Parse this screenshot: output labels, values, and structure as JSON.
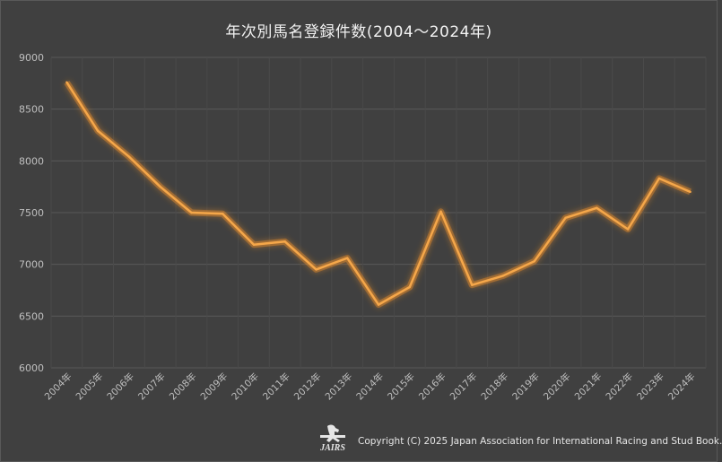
{
  "chart_data": {
    "type": "line",
    "title": "年次別馬名登録件数(2004～2024年)",
    "categories": [
      "2004年",
      "2005年",
      "2006年",
      "2007年",
      "2008年",
      "2009年",
      "2010年",
      "2011年",
      "2012年",
      "2013年",
      "2014年",
      "2015年",
      "2016年",
      "2017年",
      "2018年",
      "2019年",
      "2020年",
      "2021年",
      "2022年",
      "2023年",
      "2024年"
    ],
    "values": [
      8760,
      8290,
      8040,
      7750,
      7500,
      7490,
      7190,
      7220,
      6950,
      7060,
      6610,
      6780,
      7510,
      6800,
      6890,
      7030,
      7450,
      7545,
      7340,
      7830,
      7700
    ],
    "ylim": [
      6000,
      9000
    ],
    "yticks": [
      6000,
      6500,
      7000,
      7500,
      8000,
      8500,
      9000
    ],
    "grid": true,
    "line_color": "#f5a74a",
    "glow_color": "#e08a2a"
  },
  "footer": {
    "logo_text": "JAIRS",
    "copyright": "Copyright (C) 2025  Japan Association for International Racing and Stud Book."
  },
  "colors": {
    "background": "#404040",
    "gridline": "#595959",
    "axis_text": "#bfbfbf",
    "title_text": "#f2f2f2"
  }
}
